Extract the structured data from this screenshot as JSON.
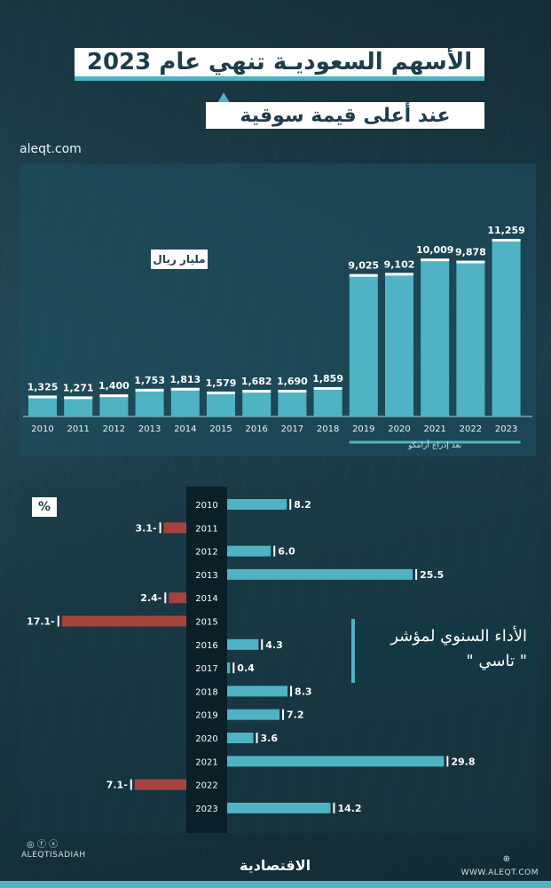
{
  "header": {
    "title": "الأسهم السعوديـة تنهي عام 2023",
    "subtitle": "عند أعلى قيمة سوقية",
    "site": "aleqt.com"
  },
  "colors": {
    "accent": "#4fb3c4",
    "bar": "#4fb3c4",
    "negative": "#a5433f",
    "label_bg": "#ffffff"
  },
  "market_value_chart": {
    "unit_label": "مليار ريال",
    "aramco_note": "بعد إدراج أرامكو"
  },
  "performance_chart": {
    "unit_label": "%",
    "title_line1": "الأداء السنوي لمؤشر",
    "title_line2": "\" تاسي \""
  },
  "footer": {
    "handle_left": "ALEQTISADIAH",
    "social_icons": "instagram-icon facebook-icon x-icon",
    "logo": "الاقتصادية",
    "site_right": "WWW.ALEQT.COM",
    "globe_icon": "globe-icon"
  },
  "chart_data": [
    {
      "type": "bar",
      "categories": [
        "2010",
        "2011",
        "2012",
        "2013",
        "2014",
        "2015",
        "2016",
        "2017",
        "2018",
        "2019",
        "2020",
        "2021",
        "2022",
        "2023"
      ],
      "values": [
        1325,
        1271,
        1400,
        1753,
        1813,
        1579,
        1682,
        1690,
        1859,
        9025,
        9102,
        10009,
        9878,
        11259
      ],
      "labels": [
        "1,325",
        "1,271",
        "1,400",
        "1,753",
        "1,813",
        "1,579",
        "1,682",
        "1,690",
        "1,859",
        "9,025",
        "9,102",
        "10,009",
        "9,878",
        "11,259"
      ],
      "title": "",
      "ylabel": "مليار ريال",
      "ylim": [
        0,
        11259
      ],
      "grid": false
    },
    {
      "type": "bar",
      "orientation": "horizontal",
      "categories": [
        "2010",
        "2011",
        "2012",
        "2013",
        "2014",
        "2015",
        "2016",
        "2017",
        "2018",
        "2019",
        "2020",
        "2021",
        "2022",
        "2023"
      ],
      "values": [
        8.2,
        -3.1,
        6.0,
        25.5,
        -2.4,
        -17.1,
        4.3,
        0.4,
        8.3,
        7.2,
        3.6,
        29.8,
        -7.1,
        14.2
      ],
      "labels": [
        "8.2",
        "3.1-",
        "6.0",
        "25.5",
        "2.4-",
        "17.1-",
        "4.3",
        "0.4",
        "8.3",
        "7.2",
        "3.6",
        "29.8",
        "7.1-",
        "14.2"
      ],
      "title": "",
      "xlabel": "%",
      "grid": false
    }
  ]
}
